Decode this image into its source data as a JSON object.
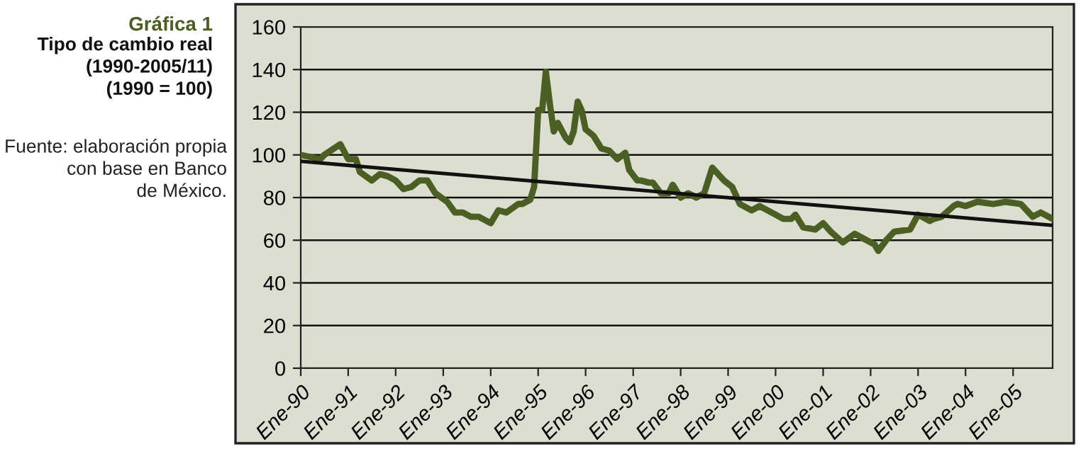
{
  "chart_data": {
    "type": "line",
    "title": "Gráfica 1",
    "subtitle": "Tipo de cambio real\n(1990-2005/11)\n(1990 = 100)",
    "annotations": [
      "Fuente: elaboración propia\ncon base en Banco\nde México."
    ],
    "xlim": [
      "1990-01",
      "2005-11"
    ],
    "ylim": [
      0,
      160
    ],
    "yticks": [
      0,
      20,
      40,
      60,
      80,
      100,
      120,
      140,
      160
    ],
    "xticks": [
      {
        "value": "1990-01",
        "label": "Ene-90"
      },
      {
        "value": "1991-01",
        "label": "Ene-91"
      },
      {
        "value": "1992-01",
        "label": "Ene-92"
      },
      {
        "value": "1993-01",
        "label": "Ene-93"
      },
      {
        "value": "1994-01",
        "label": "Ene-94"
      },
      {
        "value": "1995-01",
        "label": "Ene-95"
      },
      {
        "value": "1996-01",
        "label": "Ene-96"
      },
      {
        "value": "1997-01",
        "label": "Ene-97"
      },
      {
        "value": "1998-01",
        "label": "Ene-98"
      },
      {
        "value": "1999-01",
        "label": "Ene-99"
      },
      {
        "value": "2000-01",
        "label": "Ene-00"
      },
      {
        "value": "2001-01",
        "label": "Ene-01"
      },
      {
        "value": "2002-01",
        "label": "Ene-02"
      },
      {
        "value": "2003-01",
        "label": "Ene-03"
      },
      {
        "value": "2004-01",
        "label": "Ene-04"
      },
      {
        "value": "2005-01",
        "label": "Ene-05"
      }
    ],
    "grid": "y",
    "legend": false,
    "marker": "none",
    "line_style": "solid",
    "series": [
      {
        "color": "#4b5e24",
        "x": [
          "1990-01",
          "1990-06",
          "1990-07",
          "1990-11",
          "1991-01",
          "1991-03",
          "1991-04",
          "1991-07",
          "1991-09",
          "1991-11",
          "1992-01",
          "1992-03",
          "1992-05",
          "1992-07",
          "1992-09",
          "1992-11",
          "1993-02",
          "1993-04",
          "1993-06",
          "1993-08",
          "1993-10",
          "1993-12",
          "1994-01",
          "1994-03",
          "1994-05",
          "1994-08",
          "1994-09",
          "1994-11",
          "1994-12",
          "1995-01",
          "1995-02",
          "1995-03",
          "1995-04",
          "1995-05",
          "1995-06",
          "1995-08",
          "1995-09",
          "1995-10",
          "1995-11",
          "1995-12",
          "1996-01",
          "1996-03",
          "1996-05",
          "1996-07",
          "1996-09",
          "1996-11",
          "1996-12",
          "1997-02",
          "1997-03",
          "1997-05",
          "1997-06",
          "1997-08",
          "1997-10",
          "1997-11",
          "1998-01",
          "1998-03",
          "1998-05",
          "1998-07",
          "1998-09",
          "1998-12",
          "1999-02",
          "1999-04",
          "1999-07",
          "1999-09",
          "2000-01",
          "2000-03",
          "2000-05",
          "2000-06",
          "2000-08",
          "2000-11",
          "2001-01",
          "2001-03",
          "2001-06",
          "2001-09",
          "2001-11",
          "2002-02",
          "2002-03",
          "2002-05",
          "2002-07",
          "2002-11",
          "2003-01",
          "2003-04",
          "2003-05",
          "2003-07",
          "2003-10",
          "2003-11",
          "2004-01",
          "2004-04",
          "2004-08",
          "2004-11",
          "2005-03",
          "2005-06",
          "2005-08",
          "2005-11"
        ],
        "values": [
          100,
          98,
          100,
          105,
          98,
          98,
          92,
          88,
          91,
          90,
          88,
          84,
          85,
          88,
          88,
          82,
          78,
          73,
          73,
          71,
          71,
          69,
          68,
          74,
          73,
          77,
          77,
          79,
          85,
          121,
          121,
          139,
          124,
          111,
          115,
          108,
          106,
          111,
          125,
          121,
          112,
          109,
          103,
          102,
          98,
          101,
          93,
          88,
          88,
          87,
          87,
          82,
          82,
          86,
          80,
          82,
          80,
          82,
          94,
          88,
          85,
          77,
          74,
          76,
          72,
          70,
          70,
          72,
          66,
          65,
          68,
          64,
          59,
          63,
          61,
          58,
          55,
          60,
          64,
          65,
          72,
          69,
          70,
          71,
          76,
          77,
          76,
          78,
          77,
          78,
          77,
          71,
          73,
          70
        ]
      },
      {
        "color": "#111111",
        "x": [
          "1990-01",
          "2005-11"
        ],
        "values": [
          97,
          67
        ]
      }
    ]
  }
}
